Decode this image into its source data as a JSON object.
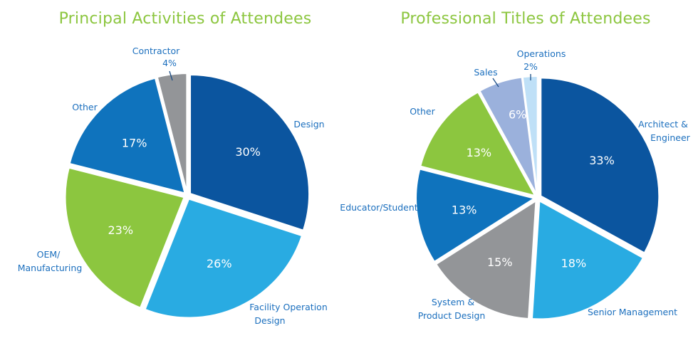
{
  "chart_data": [
    {
      "type": "pie",
      "title": "Principal Activities of Attendees",
      "slices": [
        {
          "label": "Design",
          "value": 30,
          "value_label": "30%",
          "color": "#0b559f"
        },
        {
          "label": "Facility Operation Design",
          "value": 26,
          "value_label": "26%",
          "color": "#29abe2"
        },
        {
          "label": "OEM/ Manufacturing",
          "value": 23,
          "value_label": "23%",
          "color": "#8cc63f"
        },
        {
          "label": "Other",
          "value": 17,
          "value_label": "17%",
          "color": "#0f73bd"
        },
        {
          "label": "Contractor",
          "value": 4,
          "value_label": "4%",
          "color": "#939598"
        }
      ],
      "start_angle": 0,
      "direction": "clockwise"
    },
    {
      "type": "pie",
      "title": "Professional Titles of Attendees",
      "slices": [
        {
          "label": "Architect & Engineer",
          "value": 33,
          "value_label": "33%",
          "color": "#0b559f"
        },
        {
          "label": "Senior Management",
          "value": 18,
          "value_label": "18%",
          "color": "#29abe2"
        },
        {
          "label": "System & Product Design",
          "value": 15,
          "value_label": "15%",
          "color": "#939598"
        },
        {
          "label": "Educator/Student",
          "value": 13,
          "value_label": "13%",
          "color": "#0f73bd"
        },
        {
          "label": "Other",
          "value": 13,
          "value_label": "13%",
          "color": "#8cc63f"
        },
        {
          "label": "Sales",
          "value": 6,
          "value_label": "6%",
          "color": "#9bb1dc"
        },
        {
          "label": "Operations",
          "value": 2,
          "value_label": "2%",
          "color": "#bfe0f7"
        }
      ],
      "start_angle": 0,
      "direction": "clockwise"
    }
  ]
}
